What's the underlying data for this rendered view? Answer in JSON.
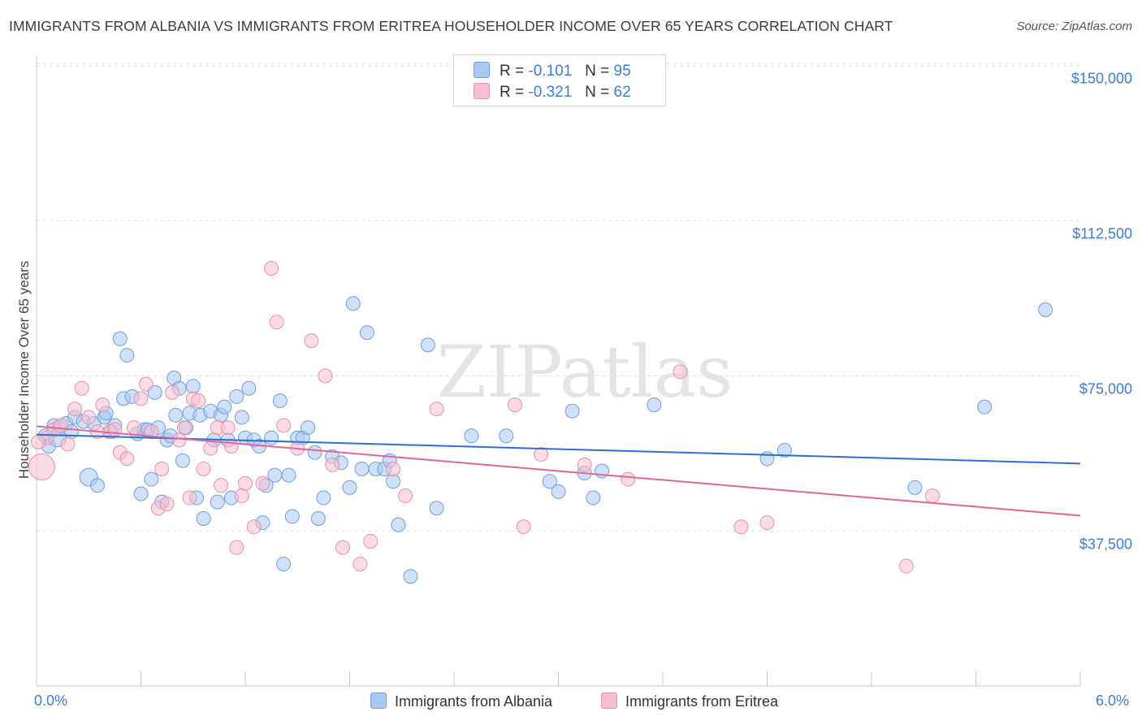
{
  "title": "IMMIGRANTS FROM ALBANIA VS IMMIGRANTS FROM ERITREA HOUSEHOLDER INCOME OVER 65 YEARS CORRELATION CHART",
  "source": "Source: ZipAtlas.com",
  "watermark": "ZIPatlas",
  "legend": {
    "albania": {
      "r_label": "R =",
      "r_value": "-0.101",
      "n_label": "N =",
      "n_value": "95"
    },
    "eritrea": {
      "r_label": "R =",
      "r_value": "-0.321",
      "n_label": "N =",
      "n_value": "62"
    }
  },
  "colors": {
    "albania_fill": "#a9c8f0",
    "albania_stroke": "#6b9fdf",
    "albania_line": "#2d6fcf",
    "eritrea_fill": "#f7bfd0",
    "eritrea_stroke": "#e98fab",
    "eritrea_line": "#e0679a",
    "tick_text": "#3b7dd8",
    "grid": "#dcdcdc"
  },
  "chart_data": {
    "type": "scatter",
    "xlabel": "",
    "ylabel": "Householder Income Over 65 years",
    "xlim": [
      0,
      6
    ],
    "ylim": [
      0,
      150000
    ],
    "x_tick_labels": [
      "0.0%",
      "6.0%"
    ],
    "y_ticks": [
      37500,
      75000,
      112500,
      150000
    ],
    "y_tick_labels": [
      "$37,500",
      "$75,000",
      "$112,500",
      "$150,000"
    ],
    "grid": true,
    "legend_position": "top-center",
    "series": [
      {
        "name": "Immigrants from Albania",
        "trend": [
          [
            0,
            60800
          ],
          [
            6,
            53800
          ]
        ],
        "points": [
          [
            0.05,
            60500
          ],
          [
            0.07,
            58000
          ],
          [
            0.1,
            63000
          ],
          [
            0.13,
            62500
          ],
          [
            0.17,
            63500
          ],
          [
            0.2,
            61500
          ],
          [
            0.22,
            65000
          ],
          [
            0.27,
            64000
          ],
          [
            0.3,
            50500
          ],
          [
            0.33,
            63500
          ],
          [
            0.35,
            48500
          ],
          [
            0.39,
            65000
          ],
          [
            0.4,
            66000
          ],
          [
            0.43,
            61500
          ],
          [
            0.45,
            63000
          ],
          [
            0.48,
            84000
          ],
          [
            0.5,
            69500
          ],
          [
            0.52,
            80000
          ],
          [
            0.55,
            70000
          ],
          [
            0.58,
            61000
          ],
          [
            0.6,
            46500
          ],
          [
            0.62,
            62000
          ],
          [
            0.64,
            62000
          ],
          [
            0.66,
            50000
          ],
          [
            0.68,
            71000
          ],
          [
            0.7,
            62500
          ],
          [
            0.72,
            44500
          ],
          [
            0.75,
            59500
          ],
          [
            0.77,
            60500
          ],
          [
            0.79,
            74500
          ],
          [
            0.8,
            65500
          ],
          [
            0.82,
            72000
          ],
          [
            0.84,
            54500
          ],
          [
            0.86,
            62500
          ],
          [
            0.88,
            66000
          ],
          [
            0.9,
            72500
          ],
          [
            0.92,
            45500
          ],
          [
            0.94,
            65500
          ],
          [
            0.96,
            40500
          ],
          [
            1.0,
            66500
          ],
          [
            1.02,
            59500
          ],
          [
            1.04,
            44500
          ],
          [
            1.06,
            65500
          ],
          [
            1.08,
            67500
          ],
          [
            1.1,
            59500
          ],
          [
            1.12,
            45500
          ],
          [
            1.15,
            70000
          ],
          [
            1.18,
            65000
          ],
          [
            1.2,
            60000
          ],
          [
            1.22,
            72000
          ],
          [
            1.25,
            59500
          ],
          [
            1.28,
            58000
          ],
          [
            1.3,
            39500
          ],
          [
            1.32,
            48500
          ],
          [
            1.35,
            60000
          ],
          [
            1.37,
            51000
          ],
          [
            1.4,
            69000
          ],
          [
            1.42,
            29500
          ],
          [
            1.45,
            51000
          ],
          [
            1.47,
            41000
          ],
          [
            1.5,
            60000
          ],
          [
            1.53,
            60000
          ],
          [
            1.56,
            62500
          ],
          [
            1.6,
            56500
          ],
          [
            1.62,
            40500
          ],
          [
            1.65,
            45500
          ],
          [
            1.7,
            55500
          ],
          [
            1.75,
            54000
          ],
          [
            1.8,
            48000
          ],
          [
            1.82,
            92500
          ],
          [
            1.87,
            52500
          ],
          [
            1.9,
            85500
          ],
          [
            1.95,
            52500
          ],
          [
            2.0,
            52500
          ],
          [
            2.03,
            54500
          ],
          [
            2.05,
            49500
          ],
          [
            2.08,
            39000
          ],
          [
            2.15,
            26500
          ],
          [
            2.25,
            82500
          ],
          [
            2.3,
            43000
          ],
          [
            2.5,
            60500
          ],
          [
            2.7,
            60500
          ],
          [
            2.95,
            49500
          ],
          [
            3.0,
            47000
          ],
          [
            3.08,
            66500
          ],
          [
            3.15,
            51500
          ],
          [
            3.2,
            45500
          ],
          [
            3.25,
            52000
          ],
          [
            3.55,
            68000
          ],
          [
            4.2,
            55000
          ],
          [
            4.3,
            57000
          ],
          [
            5.05,
            48000
          ],
          [
            5.45,
            67500
          ],
          [
            5.8,
            91000
          ],
          [
            0.12,
            60000
          ]
        ]
      },
      {
        "name": "Immigrants from Eritrea",
        "trend": [
          [
            0,
            62800
          ],
          [
            6,
            41200
          ]
        ],
        "points": [
          [
            0.03,
            53000
          ],
          [
            0.06,
            60000
          ],
          [
            0.1,
            62000
          ],
          [
            0.14,
            63000
          ],
          [
            0.18,
            58500
          ],
          [
            0.22,
            67000
          ],
          [
            0.26,
            72000
          ],
          [
            0.3,
            65000
          ],
          [
            0.35,
            61500
          ],
          [
            0.38,
            68000
          ],
          [
            0.42,
            61500
          ],
          [
            0.45,
            62000
          ],
          [
            0.48,
            56500
          ],
          [
            0.52,
            55000
          ],
          [
            0.56,
            62500
          ],
          [
            0.6,
            69500
          ],
          [
            0.63,
            73000
          ],
          [
            0.66,
            61500
          ],
          [
            0.7,
            43000
          ],
          [
            0.72,
            52500
          ],
          [
            0.75,
            44000
          ],
          [
            0.78,
            71000
          ],
          [
            0.82,
            59500
          ],
          [
            0.85,
            62500
          ],
          [
            0.88,
            45500
          ],
          [
            0.9,
            69500
          ],
          [
            0.93,
            69000
          ],
          [
            0.96,
            52500
          ],
          [
            1.0,
            57500
          ],
          [
            1.04,
            62500
          ],
          [
            1.06,
            48500
          ],
          [
            1.1,
            62500
          ],
          [
            1.12,
            58000
          ],
          [
            1.15,
            33500
          ],
          [
            1.18,
            46000
          ],
          [
            1.2,
            49000
          ],
          [
            1.25,
            38500
          ],
          [
            1.3,
            49000
          ],
          [
            1.35,
            101000
          ],
          [
            1.38,
            88000
          ],
          [
            1.42,
            63000
          ],
          [
            1.5,
            57500
          ],
          [
            1.58,
            83500
          ],
          [
            1.66,
            75000
          ],
          [
            1.7,
            53500
          ],
          [
            1.76,
            33500
          ],
          [
            1.86,
            29500
          ],
          [
            1.92,
            35000
          ],
          [
            2.05,
            52500
          ],
          [
            2.12,
            46000
          ],
          [
            2.3,
            67000
          ],
          [
            2.75,
            68000
          ],
          [
            2.8,
            38500
          ],
          [
            2.9,
            56000
          ],
          [
            3.15,
            53500
          ],
          [
            3.4,
            50000
          ],
          [
            3.7,
            76000
          ],
          [
            4.05,
            38500
          ],
          [
            4.2,
            39500
          ],
          [
            5.0,
            29000
          ],
          [
            5.15,
            46000
          ],
          [
            0.01,
            59000
          ]
        ]
      }
    ]
  },
  "bottom_legend": {
    "albania_label": "Immigrants from Albania",
    "eritrea_label": "Immigrants from Eritrea"
  }
}
